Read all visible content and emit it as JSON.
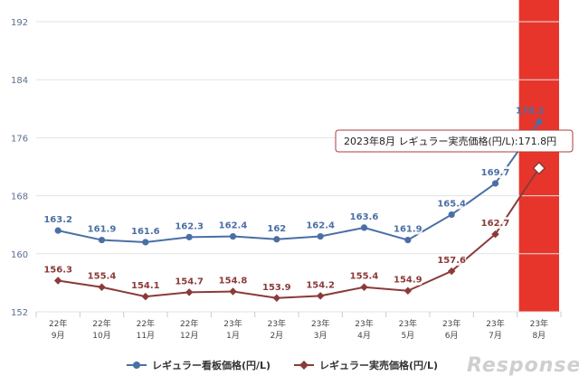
{
  "chart_data": {
    "type": "line",
    "categories": [
      [
        "22年",
        "9月"
      ],
      [
        "22年",
        "10月"
      ],
      [
        "22年",
        "11月"
      ],
      [
        "22年",
        "12月"
      ],
      [
        "23年",
        "1月"
      ],
      [
        "23年",
        "2月"
      ],
      [
        "23年",
        "3月"
      ],
      [
        "23年",
        "4月"
      ],
      [
        "23年",
        "5月"
      ],
      [
        "23年",
        "6月"
      ],
      [
        "23年",
        "7月"
      ],
      [
        "23年",
        "8月"
      ]
    ],
    "ylim": [
      152,
      192
    ],
    "yticks": [
      152,
      160,
      168,
      176,
      184,
      192
    ],
    "grid": true,
    "legend_position": "bottom",
    "series": [
      {
        "name": "レギュラー看板価格(円/L)",
        "color": "#4a6fa5",
        "marker": "circle",
        "values": [
          163.2,
          161.9,
          161.6,
          162.3,
          162.4,
          162,
          162.4,
          163.6,
          161.9,
          165.4,
          169.7,
          178.2
        ],
        "labels": [
          "163.2",
          "161.9",
          "161.6",
          "162.3",
          "162.4",
          "162",
          "162.4",
          "163.6",
          "161.9",
          "165.4",
          "169.7",
          "178.2"
        ]
      },
      {
        "name": "レギュラー実売価格(円/L)",
        "color": "#8b3a3a",
        "marker": "diamond",
        "values": [
          156.3,
          155.4,
          154.1,
          154.7,
          154.8,
          153.9,
          154.2,
          155.4,
          154.9,
          157.6,
          162.7,
          171.8
        ],
        "labels": [
          "156.3",
          "155.4",
          "154.1",
          "154.7",
          "154.8",
          "153.9",
          "154.2",
          "155.4",
          "154.9",
          "157.6",
          "162.7",
          ""
        ]
      }
    ],
    "highlight": {
      "category_index": 11,
      "color": "#e8352b"
    },
    "tooltip": {
      "text": "2023年8月  レギュラー実売価格(円/L):171.8円"
    },
    "watermark": "Response."
  }
}
